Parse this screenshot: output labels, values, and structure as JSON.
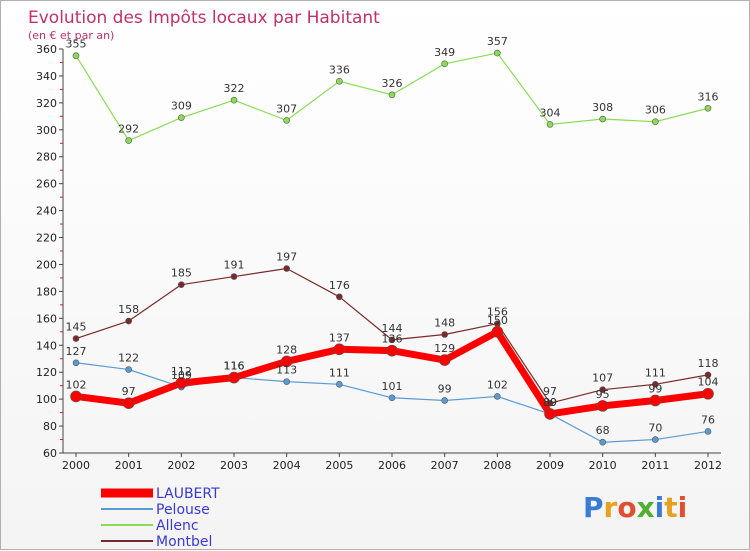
{
  "chart_data": {
    "type": "line",
    "title": "Evolution des Impôts locaux par Habitant",
    "subtitle": "(en € et par an)",
    "xlabel": "",
    "ylabel": "",
    "x": [
      "2000",
      "2001",
      "2002",
      "2003",
      "2004",
      "2005",
      "2006",
      "2007",
      "2008",
      "2009",
      "2010",
      "2011",
      "2012"
    ],
    "ylim": [
      60,
      360
    ],
    "yticks": [
      60,
      80,
      100,
      120,
      140,
      160,
      180,
      200,
      220,
      240,
      260,
      280,
      300,
      320,
      340,
      360
    ],
    "grid": false,
    "legend_position": "bottom-left",
    "series": [
      {
        "name": "LAUBERT",
        "color": "#ff0000",
        "values": [
          102,
          97,
          112,
          116,
          128,
          137,
          136,
          129,
          150,
          89,
          95,
          99,
          104
        ],
        "labels": [
          "102",
          "97",
          "112",
          "116",
          "128",
          "137",
          "136",
          "129",
          "150",
          "89",
          "95",
          "99",
          "104"
        ]
      },
      {
        "name": "Pelouse",
        "color": "#5b9bd5",
        "values": [
          127,
          122,
          109,
          116,
          113,
          111,
          101,
          99,
          102,
          89,
          68,
          70,
          76
        ],
        "labels": [
          "127",
          "122",
          "109",
          "116",
          "113",
          "111",
          "101",
          "99",
          "102",
          "89",
          "68",
          "70",
          "76"
        ]
      },
      {
        "name": "Allenc",
        "color": "#88dd55",
        "values": [
          355,
          292,
          309,
          322,
          307,
          336,
          326,
          349,
          357,
          304,
          308,
          306,
          316
        ],
        "labels": [
          "355",
          "292",
          "309",
          "322",
          "307",
          "336",
          "326",
          "349",
          "357",
          "304",
          "308",
          "306",
          "316"
        ]
      },
      {
        "name": "Montbel",
        "color": "#7a2a2a",
        "values": [
          145,
          158,
          185,
          191,
          197,
          176,
          144,
          148,
          156,
          97,
          107,
          111,
          118
        ],
        "labels": [
          "145",
          "158",
          "185",
          "191",
          "197",
          "176",
          "144",
          "148",
          "156",
          "97",
          "107",
          "111",
          "118"
        ]
      }
    ]
  },
  "brand": {
    "text": "Proxiti",
    "colors": [
      "#3a7bd5",
      "#e8a020",
      "#e05030",
      "#50b030",
      "#3a7bd5",
      "#e8a020",
      "#e05030"
    ]
  }
}
